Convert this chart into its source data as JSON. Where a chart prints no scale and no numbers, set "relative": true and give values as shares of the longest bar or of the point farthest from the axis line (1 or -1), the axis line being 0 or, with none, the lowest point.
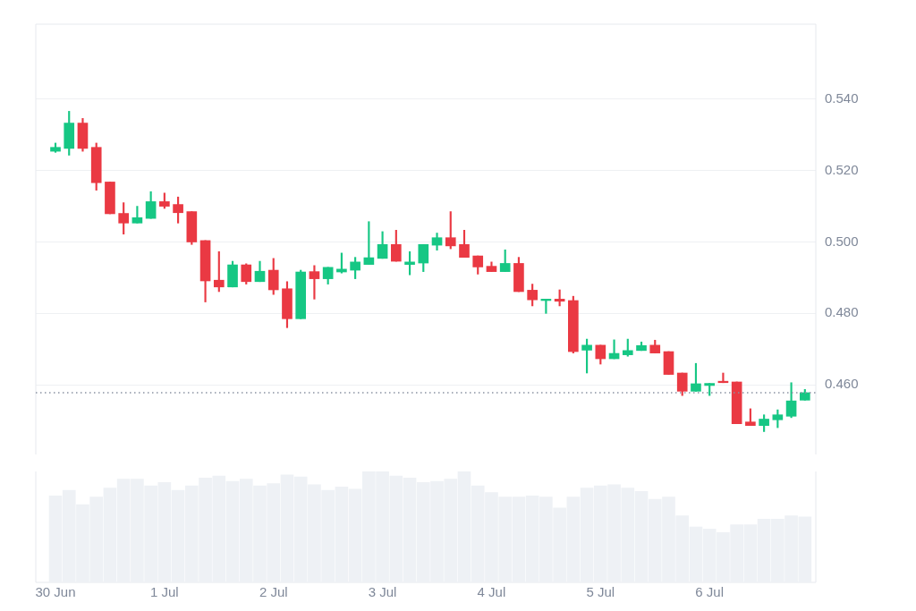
{
  "chart_data": [
    {
      "type": "candlestick",
      "x": [
        "--06-30T00:00",
        "--06-30T03:00",
        "--06-30T06:00",
        "--06-30T09:00",
        "--06-30T12:00",
        "--06-30T15:00",
        "--06-30T18:00",
        "--06-30T21:00",
        "--07-01T00:00",
        "--07-01T03:00",
        "--07-01T06:00",
        "--07-01T09:00",
        "--07-01T12:00",
        "--07-01T15:00",
        "--07-01T18:00",
        "--07-01T21:00",
        "--07-02T00:00",
        "--07-02T03:00",
        "--07-02T06:00",
        "--07-02T09:00",
        "--07-02T12:00",
        "--07-02T15:00",
        "--07-02T18:00",
        "--07-02T21:00",
        "--07-03T00:00",
        "--07-03T03:00",
        "--07-03T06:00",
        "--07-03T09:00",
        "--07-03T12:00",
        "--07-03T15:00",
        "--07-03T18:00",
        "--07-03T21:00",
        "--07-04T00:00",
        "--07-04T03:00",
        "--07-04T06:00",
        "--07-04T09:00",
        "--07-04T12:00",
        "--07-04T15:00",
        "--07-04T18:00",
        "--07-04T21:00",
        "--07-05T00:00",
        "--07-05T03:00",
        "--07-05T06:00",
        "--07-05T09:00",
        "--07-05T12:00",
        "--07-05T15:00",
        "--07-05T18:00",
        "--07-05T21:00",
        "--07-06T00:00",
        "--07-06T03:00",
        "--07-06T06:00",
        "--07-06T09:00",
        "--07-06T12:00",
        "--07-06T15:00",
        "--07-06T18:00",
        "--07-06T21:00"
      ],
      "colors": [
        "#16c784",
        "#16c784",
        "#ea3943",
        "#ea3943",
        "#ea3943",
        "#ea3943",
        "#16c784",
        "#16c784",
        "#ea3943",
        "#ea3943",
        "#ea3943",
        "#ea3943",
        "#ea3943",
        "#16c784",
        "#ea3943",
        "#16c784",
        "#ea3943",
        "#ea3943",
        "#16c784",
        "#ea3943",
        "#16c784",
        "#16c784",
        "#16c784",
        "#16c784",
        "#16c784",
        "#ea3943",
        "#16c784",
        "#16c784",
        "#16c784",
        "#ea3943",
        "#ea3943",
        "#ea3943",
        "#ea3943",
        "#16c784",
        "#ea3943",
        "#ea3943",
        "#16c784",
        "#ea3943",
        "#ea3943",
        "#16c784",
        "#ea3943",
        "#16c784",
        "#16c784",
        "#16c784",
        "#ea3943",
        "#ea3943",
        "#ea3943",
        "#16c784",
        "#16c784",
        "#ea3943",
        "#ea3943",
        "#ea3943",
        "#16c784",
        "#16c784",
        "#16c784",
        "#16c784"
      ],
      "ohlc": [
        [
          0.5254,
          0.5277,
          0.5251,
          0.5265
        ],
        [
          0.5262,
          0.5366,
          0.5243,
          0.5333
        ],
        [
          0.5333,
          0.5346,
          0.5254,
          0.5262
        ],
        [
          0.5265,
          0.5277,
          0.5145,
          0.5166
        ],
        [
          0.5168,
          0.5168,
          0.5079,
          0.5079
        ],
        [
          0.508,
          0.511,
          0.5022,
          0.5053
        ],
        [
          0.5053,
          0.51,
          0.5053,
          0.5068
        ],
        [
          0.5066,
          0.5141,
          0.5066,
          0.5113
        ],
        [
          0.5113,
          0.5137,
          0.5094,
          0.51
        ],
        [
          0.5105,
          0.5126,
          0.5053,
          0.5082
        ],
        [
          0.5085,
          0.5085,
          0.4993,
          0.5
        ],
        [
          0.5004,
          0.5004,
          0.4832,
          0.4891
        ],
        [
          0.4893,
          0.4973,
          0.4861,
          0.4874
        ],
        [
          0.4874,
          0.4946,
          0.4874,
          0.4936
        ],
        [
          0.4936,
          0.4939,
          0.4882,
          0.4889
        ],
        [
          0.4889,
          0.4946,
          0.4889,
          0.4918
        ],
        [
          0.4921,
          0.4954,
          0.4853,
          0.4866
        ],
        [
          0.4869,
          0.4889,
          0.476,
          0.4785
        ],
        [
          0.4785,
          0.4921,
          0.4785,
          0.4916
        ],
        [
          0.4917,
          0.4934,
          0.484,
          0.4897
        ],
        [
          0.4897,
          0.4929,
          0.4882,
          0.4929
        ],
        [
          0.4916,
          0.4969,
          0.4913,
          0.4924
        ],
        [
          0.4921,
          0.4957,
          0.4897,
          0.4944
        ],
        [
          0.4937,
          0.5057,
          0.4937,
          0.4956
        ],
        [
          0.4954,
          0.5029,
          0.4954,
          0.4993
        ],
        [
          0.4993,
          0.5033,
          0.4946,
          0.4946
        ],
        [
          0.4937,
          0.4973,
          0.4908,
          0.4944
        ],
        [
          0.4941,
          0.4993,
          0.4917,
          0.4993
        ],
        [
          0.4991,
          0.5025,
          0.4977,
          0.5012
        ],
        [
          0.5012,
          0.5085,
          0.4981,
          0.4989
        ],
        [
          0.4993,
          0.5033,
          0.4957,
          0.4957
        ],
        [
          0.4961,
          0.4961,
          0.491,
          0.493
        ],
        [
          0.4932,
          0.4944,
          0.4917,
          0.4917
        ],
        [
          0.4917,
          0.4978,
          0.4917,
          0.494
        ],
        [
          0.494,
          0.4957,
          0.4861,
          0.4861
        ],
        [
          0.4865,
          0.4882,
          0.4821,
          0.4838
        ],
        [
          0.4836,
          0.484,
          0.48,
          0.484
        ],
        [
          0.484,
          0.4866,
          0.4821,
          0.4834
        ],
        [
          0.4836,
          0.4848,
          0.4689,
          0.4693
        ],
        [
          0.4697,
          0.4728,
          0.4633,
          0.4711
        ],
        [
          0.4711,
          0.4711,
          0.4658,
          0.4673
        ],
        [
          0.4673,
          0.4726,
          0.4673,
          0.4688
        ],
        [
          0.4684,
          0.4728,
          0.468,
          0.4696
        ],
        [
          0.4696,
          0.472,
          0.4696,
          0.471
        ],
        [
          0.4711,
          0.4725,
          0.4689,
          0.4689
        ],
        [
          0.4693,
          0.4693,
          0.4629,
          0.4629
        ],
        [
          0.4633,
          0.4633,
          0.457,
          0.4582
        ],
        [
          0.4582,
          0.466,
          0.4582,
          0.4603
        ],
        [
          0.4598,
          0.4604,
          0.457,
          0.4604
        ],
        [
          0.461,
          0.4633,
          0.4606,
          0.4606
        ],
        [
          0.4608,
          0.4608,
          0.4491,
          0.4491
        ],
        [
          0.4496,
          0.4533,
          0.4486,
          0.4486
        ],
        [
          0.4486,
          0.4516,
          0.4469,
          0.4504
        ],
        [
          0.4502,
          0.453,
          0.448,
          0.4516
        ],
        [
          0.4512,
          0.4606,
          0.4508,
          0.4555
        ],
        [
          0.4557,
          0.4587,
          0.4557,
          0.4578
        ]
      ],
      "xlim": [
        "--06-29T19:40",
        "--07-06T23:24"
      ],
      "ylim": [
        0.4405,
        0.561
      ],
      "yticks": [
        {
          "value": 0.46,
          "label": "0.460"
        },
        {
          "value": 0.48,
          "label": "0.480"
        },
        {
          "value": 0.5,
          "label": "0.500"
        },
        {
          "value": 0.52,
          "label": "0.520"
        },
        {
          "value": 0.54,
          "label": "0.540"
        }
      ],
      "ref_lines": [
        {
          "axis": "y",
          "value": 0.4578,
          "color": "#8a93a3",
          "line_style": "dotted"
        }
      ],
      "tick_labels": "y",
      "grid": "y"
    },
    {
      "type": "bar",
      "relative": true,
      "color": "#eef1f5",
      "x": [
        "--06-30T00:00",
        "--06-30T03:00",
        "--06-30T06:00",
        "--06-30T09:00",
        "--06-30T12:00",
        "--06-30T15:00",
        "--06-30T18:00",
        "--06-30T21:00",
        "--07-01T00:00",
        "--07-01T03:00",
        "--07-01T06:00",
        "--07-01T09:00",
        "--07-01T12:00",
        "--07-01T15:00",
        "--07-01T18:00",
        "--07-01T21:00",
        "--07-02T00:00",
        "--07-02T03:00",
        "--07-02T06:00",
        "--07-02T09:00",
        "--07-02T12:00",
        "--07-02T15:00",
        "--07-02T18:00",
        "--07-02T21:00",
        "--07-03T00:00",
        "--07-03T03:00",
        "--07-03T06:00",
        "--07-03T09:00",
        "--07-03T12:00",
        "--07-03T15:00",
        "--07-03T18:00",
        "--07-03T21:00",
        "--07-04T00:00",
        "--07-04T03:00",
        "--07-04T06:00",
        "--07-04T09:00",
        "--07-04T12:00",
        "--07-04T15:00",
        "--07-04T18:00",
        "--07-04T21:00",
        "--07-05T00:00",
        "--07-05T03:00",
        "--07-05T06:00",
        "--07-05T09:00",
        "--07-05T12:00",
        "--07-05T15:00",
        "--07-05T18:00",
        "--07-05T21:00",
        "--07-06T00:00",
        "--07-06T03:00",
        "--07-06T06:00",
        "--07-06T09:00",
        "--07-06T12:00",
        "--07-06T15:00",
        "--07-06T18:00",
        "--07-06T21:00"
      ],
      "values": [
        0.78,
        0.83,
        0.7,
        0.77,
        0.85,
        0.93,
        0.93,
        0.87,
        0.9,
        0.83,
        0.87,
        0.94,
        0.96,
        0.91,
        0.93,
        0.87,
        0.89,
        0.97,
        0.95,
        0.88,
        0.83,
        0.86,
        0.84,
        1,
        1,
        0.96,
        0.94,
        0.9,
        0.91,
        0.93,
        1,
        0.87,
        0.81,
        0.77,
        0.77,
        0.78,
        0.77,
        0.67,
        0.77,
        0.85,
        0.87,
        0.88,
        0.85,
        0.82,
        0.75,
        0.77,
        0.6,
        0.5,
        0.48,
        0.45,
        0.52,
        0.52,
        0.57,
        0.57,
        0.6,
        0.59
      ],
      "xlim": [
        "--06-29T19:40",
        "--07-06T23:24"
      ],
      "xticks": [
        {
          "value": "--06-30",
          "label": "30 Jun"
        },
        {
          "value": "--07-01",
          "label": "1 Jul"
        },
        {
          "value": "--07-02",
          "label": "2 Jul"
        },
        {
          "value": "--07-03",
          "label": "3 Jul"
        },
        {
          "value": "--07-04",
          "label": "4 Jul"
        },
        {
          "value": "--07-05",
          "label": "5 Jul"
        },
        {
          "value": "--07-06",
          "label": "6 Jul"
        }
      ]
    }
  ]
}
